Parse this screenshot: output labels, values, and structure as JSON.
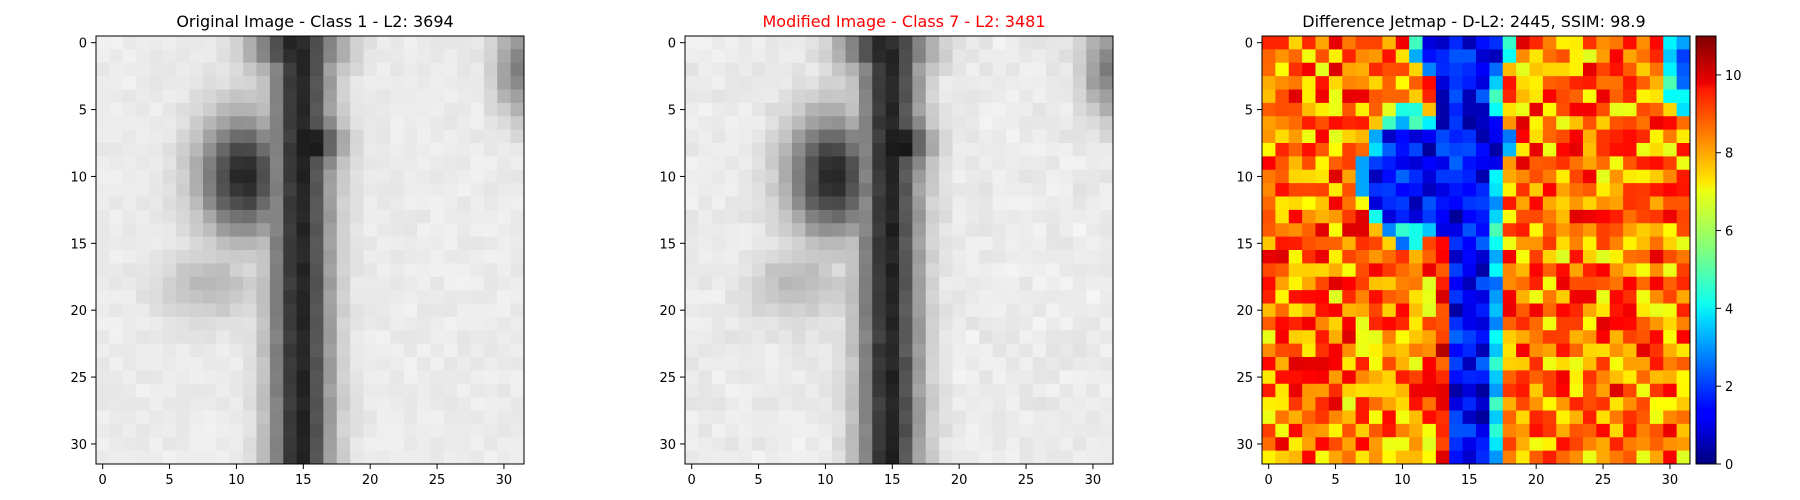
{
  "figure": {
    "panels": [
      {
        "title": "Original Image - Class 1 - L2: 3694",
        "title_color": "#000000"
      },
      {
        "title": "Modified Image - Class 7 - L2: 3481",
        "title_color": "#ff0000"
      },
      {
        "title": "Difference Jetmap - D-L2: 2445, SSIM: 98.9",
        "title_color": "#000000"
      }
    ]
  },
  "chart_data": [
    {
      "type": "heatmap",
      "title": "Original Image - Class 1 - L2: 3694",
      "colormap": "gray",
      "grid_size": [
        32,
        32
      ],
      "xticks": [
        0,
        5,
        10,
        15,
        20,
        25,
        30
      ],
      "yticks": [
        0,
        5,
        10,
        15,
        20,
        25,
        30
      ],
      "xlim": [
        -0.5,
        31.5
      ],
      "ylim": [
        31.5,
        -0.5
      ],
      "content": "grayscale digit '1': dark vertical stroke near columns 12-18 with a leftward arm near rows 5-15"
    },
    {
      "type": "heatmap",
      "title": "Modified Image - Class 7 - L2: 3481",
      "colormap": "gray",
      "grid_size": [
        32,
        32
      ],
      "xticks": [
        0,
        5,
        10,
        15,
        20,
        25,
        30
      ],
      "yticks": [
        0,
        5,
        10,
        15,
        20,
        25,
        30
      ],
      "xlim": [
        -0.5,
        31.5
      ],
      "ylim": [
        31.5,
        -0.5
      ],
      "content": "nearly identical grayscale digit with slight perturbations"
    },
    {
      "type": "heatmap",
      "title": "Difference Jetmap - D-L2: 2445, SSIM: 98.9",
      "colormap": "jet",
      "grid_size": [
        32,
        32
      ],
      "xticks": [
        0,
        5,
        10,
        15,
        20,
        25,
        30
      ],
      "yticks": [
        0,
        5,
        10,
        15,
        20,
        25,
        30
      ],
      "xlim": [
        -0.5,
        31.5
      ],
      "ylim": [
        31.5,
        -0.5
      ],
      "colorbar": {
        "range": [
          0,
          11
        ],
        "ticks": [
          0,
          2,
          4,
          6,
          8,
          10
        ]
      }
    }
  ]
}
